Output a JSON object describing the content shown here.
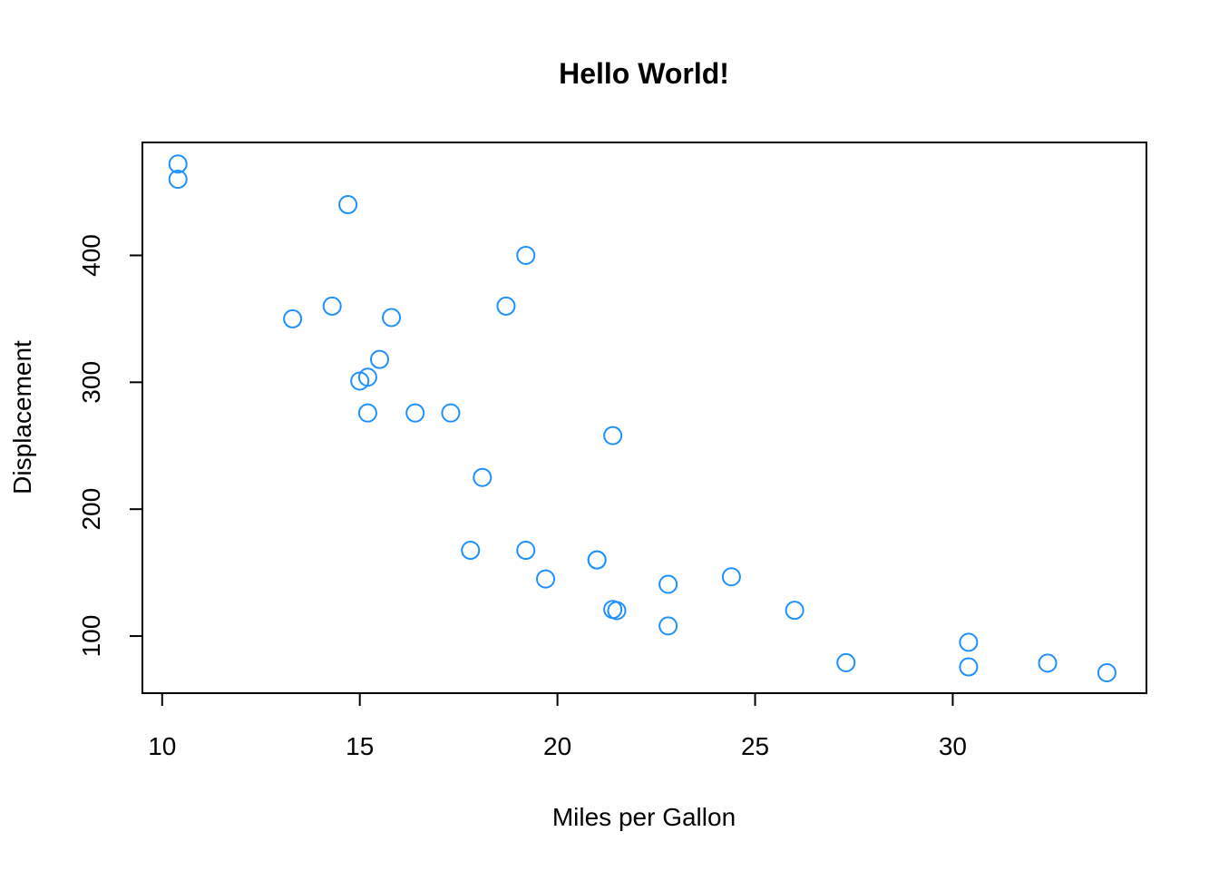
{
  "chart_data": {
    "type": "scatter",
    "title": "Hello World!",
    "xlabel": "Miles per Gallon",
    "ylabel": "Displacement",
    "xlim": [
      9.5,
      34.9
    ],
    "ylim": [
      55,
      489
    ],
    "xticks": [
      10,
      15,
      20,
      25,
      30
    ],
    "yticks": [
      100,
      200,
      300,
      400
    ],
    "grid": false,
    "legend": "none",
    "point_color": "#1E90FF",
    "series": [
      {
        "points": [
          {
            "x": 21.0,
            "y": 160
          },
          {
            "x": 21.0,
            "y": 160
          },
          {
            "x": 22.8,
            "y": 108
          },
          {
            "x": 21.4,
            "y": 258
          },
          {
            "x": 18.7,
            "y": 360
          },
          {
            "x": 18.1,
            "y": 225
          },
          {
            "x": 14.3,
            "y": 360
          },
          {
            "x": 24.4,
            "y": 146.7
          },
          {
            "x": 22.8,
            "y": 140.8
          },
          {
            "x": 19.2,
            "y": 167.6
          },
          {
            "x": 17.8,
            "y": 167.6
          },
          {
            "x": 16.4,
            "y": 275.8
          },
          {
            "x": 17.3,
            "y": 275.8
          },
          {
            "x": 15.2,
            "y": 275.8
          },
          {
            "x": 10.4,
            "y": 472
          },
          {
            "x": 10.4,
            "y": 460
          },
          {
            "x": 14.7,
            "y": 440
          },
          {
            "x": 32.4,
            "y": 78.7
          },
          {
            "x": 30.4,
            "y": 75.7
          },
          {
            "x": 33.9,
            "y": 71.1
          },
          {
            "x": 21.5,
            "y": 120.1
          },
          {
            "x": 15.5,
            "y": 318
          },
          {
            "x": 15.2,
            "y": 304
          },
          {
            "x": 13.3,
            "y": 350
          },
          {
            "x": 19.2,
            "y": 400
          },
          {
            "x": 27.3,
            "y": 79
          },
          {
            "x": 26.0,
            "y": 120.3
          },
          {
            "x": 30.4,
            "y": 95.1
          },
          {
            "x": 15.8,
            "y": 351
          },
          {
            "x": 19.7,
            "y": 145
          },
          {
            "x": 15.0,
            "y": 301
          },
          {
            "x": 21.4,
            "y": 121
          }
        ]
      }
    ]
  }
}
